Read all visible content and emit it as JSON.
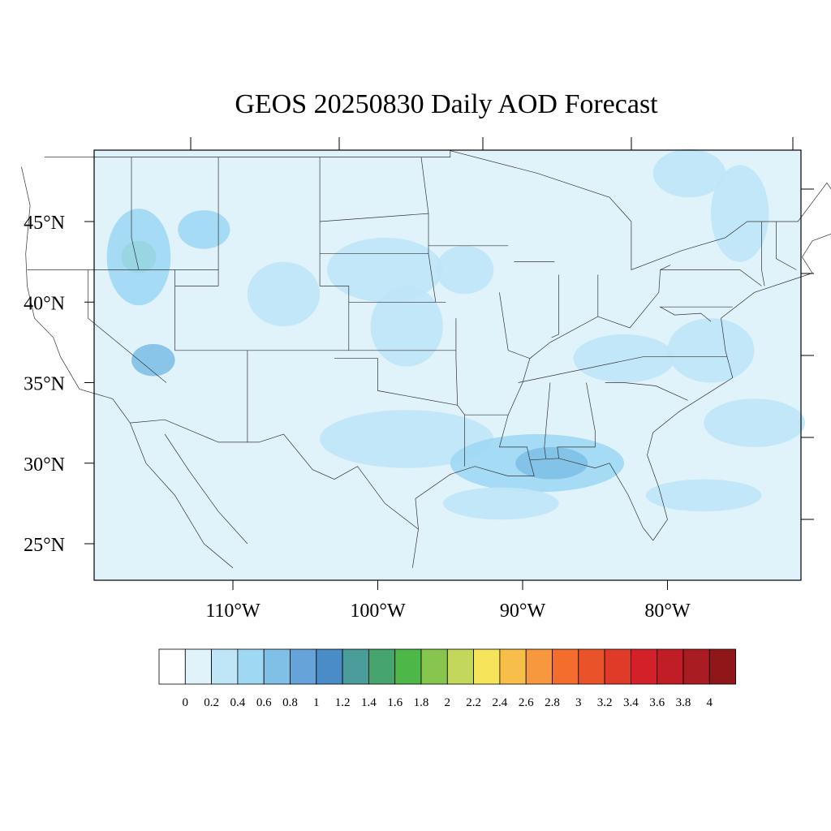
{
  "title": "GEOS 20250830 Daily AOD Forecast",
  "latitude_labels": [
    "25°N",
    "30°N",
    "35°N",
    "40°N",
    "45°N"
  ],
  "longitude_labels": [
    "110°W",
    "100°W",
    "90°W",
    "80°W"
  ],
  "map_extent": {
    "lon_min": -119,
    "lon_max": -70,
    "lat_min": 23,
    "lat_max": 50
  },
  "colorbar": {
    "labels": [
      "0",
      "0.2",
      "0.4",
      "0.6",
      "0.8",
      "1",
      "1.2",
      "1.4",
      "1.6",
      "1.8",
      "2",
      "2.2",
      "2.4",
      "2.6",
      "2.8",
      "3",
      "3.2",
      "3.4",
      "3.6",
      "3.8",
      "4"
    ],
    "colors": [
      "#ffffff",
      "#e0f3fb",
      "#bfe6f7",
      "#9fd8f3",
      "#80c0e6",
      "#66a3d8",
      "#4a8cc6",
      "#4a9d9a",
      "#46a56e",
      "#4db848",
      "#86c64e",
      "#c3d85a",
      "#f6e45a",
      "#f8be4a",
      "#f7983e",
      "#f46d2c",
      "#ea5329",
      "#e03b28",
      "#d42129",
      "#c11d26",
      "#a91c21",
      "#8f1719"
    ]
  },
  "aod_areas": [
    {
      "lon": -116.5,
      "lat": 42.8,
      "rx": 1.2,
      "ry": 1.0,
      "level": 9
    },
    {
      "lon": -116.5,
      "lat": 42.8,
      "rx": 2.2,
      "ry": 3.0,
      "level": 3
    },
    {
      "lon": -115.5,
      "lat": 36.4,
      "rx": 1.5,
      "ry": 1.0,
      "level": 4
    },
    {
      "lon": -112.0,
      "lat": 44.5,
      "rx": 1.8,
      "ry": 1.2,
      "level": 3
    },
    {
      "lon": -106.5,
      "lat": 40.5,
      "rx": 2.5,
      "ry": 2.0,
      "level": 2
    },
    {
      "lon": -99.5,
      "lat": 42.0,
      "rx": 4.0,
      "ry": 2.0,
      "level": 2
    },
    {
      "lon": -98.0,
      "lat": 38.5,
      "rx": 2.5,
      "ry": 2.5,
      "level": 2
    },
    {
      "lon": -98.0,
      "lat": 31.5,
      "rx": 6.0,
      "ry": 1.8,
      "level": 2
    },
    {
      "lon": -89.0,
      "lat": 30.0,
      "rx": 6.0,
      "ry": 1.8,
      "level": 3
    },
    {
      "lon": -88.0,
      "lat": 30.0,
      "rx": 2.5,
      "ry": 1.0,
      "level": 4
    },
    {
      "lon": -83.0,
      "lat": 36.5,
      "rx": 3.5,
      "ry": 1.5,
      "level": 2
    },
    {
      "lon": -77.0,
      "lat": 37.0,
      "rx": 3.0,
      "ry": 2.0,
      "level": 2
    },
    {
      "lon": -74.0,
      "lat": 32.5,
      "rx": 3.5,
      "ry": 1.5,
      "level": 2
    },
    {
      "lon": -77.5,
      "lat": 28.0,
      "rx": 4.0,
      "ry": 1.0,
      "level": 2
    },
    {
      "lon": -75.0,
      "lat": 45.5,
      "rx": 2.0,
      "ry": 3.0,
      "level": 2
    },
    {
      "lon": -78.5,
      "lat": 48.0,
      "rx": 2.5,
      "ry": 1.5,
      "level": 2
    },
    {
      "lon": -91.5,
      "lat": 27.5,
      "rx": 4.0,
      "ry": 1.0,
      "level": 2
    },
    {
      "lon": -94.0,
      "lat": 42.0,
      "rx": 2.0,
      "ry": 1.5,
      "level": 2
    }
  ]
}
